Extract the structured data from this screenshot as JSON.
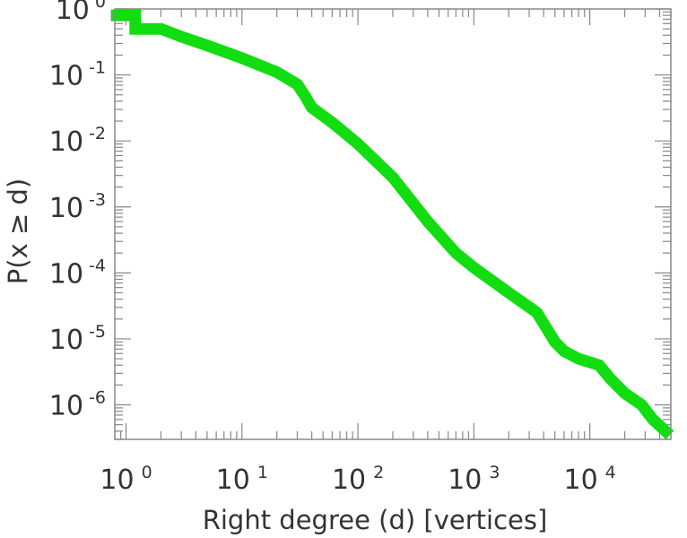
{
  "chart_data": {
    "type": "line",
    "xlabel": "Right degree (d) [vertices]",
    "ylabel": "P(x ≥ d)",
    "x_scale": "log",
    "y_scale": "log",
    "xlim": [
      0.8,
      50000
    ],
    "ylim": [
      3e-07,
      1
    ],
    "x_ticks": [
      {
        "base": "10",
        "exp": "0",
        "value": 1
      },
      {
        "base": "10",
        "exp": "1",
        "value": 10
      },
      {
        "base": "10",
        "exp": "2",
        "value": 100
      },
      {
        "base": "10",
        "exp": "3",
        "value": 1000
      },
      {
        "base": "10",
        "exp": "4",
        "value": 10000
      }
    ],
    "y_ticks": [
      {
        "base": "10",
        "exp": "0",
        "value": 1
      },
      {
        "base": "10",
        "exp": "-1",
        "value": 0.1
      },
      {
        "base": "10",
        "exp": "-2",
        "value": 0.01
      },
      {
        "base": "10",
        "exp": "-3",
        "value": 0.001
      },
      {
        "base": "10",
        "exp": "-4",
        "value": 0.0001
      },
      {
        "base": "10",
        "exp": "-5",
        "value": 1e-05
      },
      {
        "base": "10",
        "exp": "-6",
        "value": 1e-06
      }
    ],
    "grid": false,
    "series": [
      {
        "color": "#11dd11",
        "style": "step",
        "points": [
          [
            0.83,
            0.8
          ],
          [
            1.2,
            0.8
          ],
          [
            1.2,
            0.5
          ],
          [
            2.0,
            0.5
          ],
          [
            3.0,
            0.38
          ],
          [
            5.0,
            0.28
          ],
          [
            10,
            0.18
          ],
          [
            20,
            0.11
          ],
          [
            30,
            0.072
          ],
          [
            35,
            0.048
          ],
          [
            40,
            0.032
          ],
          [
            60,
            0.019
          ],
          [
            100,
            0.009
          ],
          [
            200,
            0.0028
          ],
          [
            400,
            0.0006
          ],
          [
            700,
            0.0002
          ],
          [
            1000,
            0.00012
          ],
          [
            2000,
            5e-05
          ],
          [
            3500,
            2.5e-05
          ],
          [
            5000,
            9e-06
          ],
          [
            6000,
            6.5e-06
          ],
          [
            8000,
            5e-06
          ],
          [
            12000,
            4e-06
          ],
          [
            15000,
            2.5e-06
          ],
          [
            20000,
            1.5e-06
          ],
          [
            28000,
            1e-06
          ],
          [
            35000,
            6e-07
          ],
          [
            45000,
            4e-07
          ]
        ]
      }
    ]
  }
}
